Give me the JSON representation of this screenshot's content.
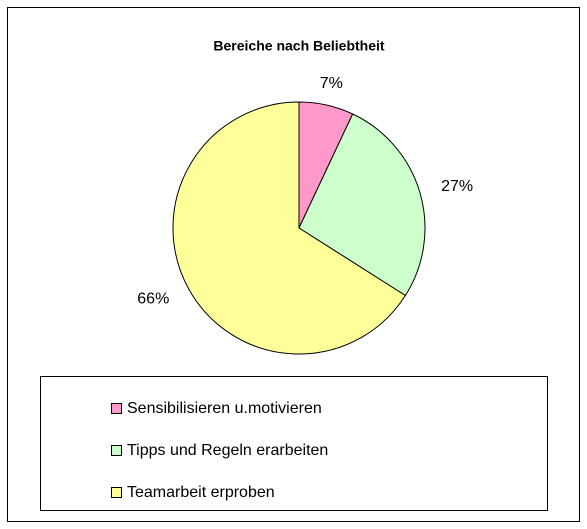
{
  "chart_data": {
    "type": "pie",
    "title": "Bereiche nach Beliebtheit",
    "categories": [
      "Sensibilisieren u.motivieren",
      "Tipps und Regeln erarbeiten",
      "Teamarbeit erproben"
    ],
    "values": [
      7,
      27,
      66
    ],
    "value_labels": [
      "7%",
      "27%",
      "66%"
    ],
    "colors": [
      "#ff99cc",
      "#ccffcc",
      "#ffff99"
    ],
    "legend": "bottom"
  }
}
